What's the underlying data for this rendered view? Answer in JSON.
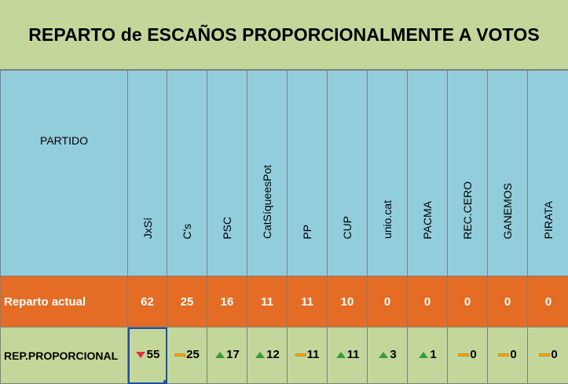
{
  "title": "REPARTO de ESCAÑOS PROPORCIONALMENTE A VOTOS",
  "header_label": "PARTIDO",
  "row_actual_label": "Reparto actual",
  "row_prop_label": "REP.PROPORCIONAL",
  "colors": {
    "background": "#c4d79b",
    "header": "#92cddc",
    "actual_row": "#e46c24",
    "trend_up": "#3a9a3a",
    "trend_down": "#e0323c",
    "trend_equal": "#f7a81b",
    "selection": "#1f4ea8"
  },
  "parties": [
    {
      "name": "JxSí",
      "actual": "62",
      "prop": "55",
      "trend": "down"
    },
    {
      "name": "C's",
      "actual": "25",
      "prop": "25",
      "trend": "equal"
    },
    {
      "name": "PSC",
      "actual": "16",
      "prop": "17",
      "trend": "up"
    },
    {
      "name": "CatSíqueesPot",
      "actual": "11",
      "prop": "12",
      "trend": "up"
    },
    {
      "name": "PP",
      "actual": "11",
      "prop": "11",
      "trend": "equal"
    },
    {
      "name": "CUP",
      "actual": "10",
      "prop": "11",
      "trend": "up"
    },
    {
      "name": "unio.cat",
      "actual": "0",
      "prop": "3",
      "trend": "up"
    },
    {
      "name": "PACMA",
      "actual": "0",
      "prop": "1",
      "trend": "up"
    },
    {
      "name": "REC.CERO",
      "actual": "0",
      "prop": "0",
      "trend": "equal"
    },
    {
      "name": "GANEMOS",
      "actual": "0",
      "prop": "0",
      "trend": "equal"
    },
    {
      "name": "PIRATA",
      "actual": "0",
      "prop": "0",
      "trend": "equal"
    }
  ]
}
